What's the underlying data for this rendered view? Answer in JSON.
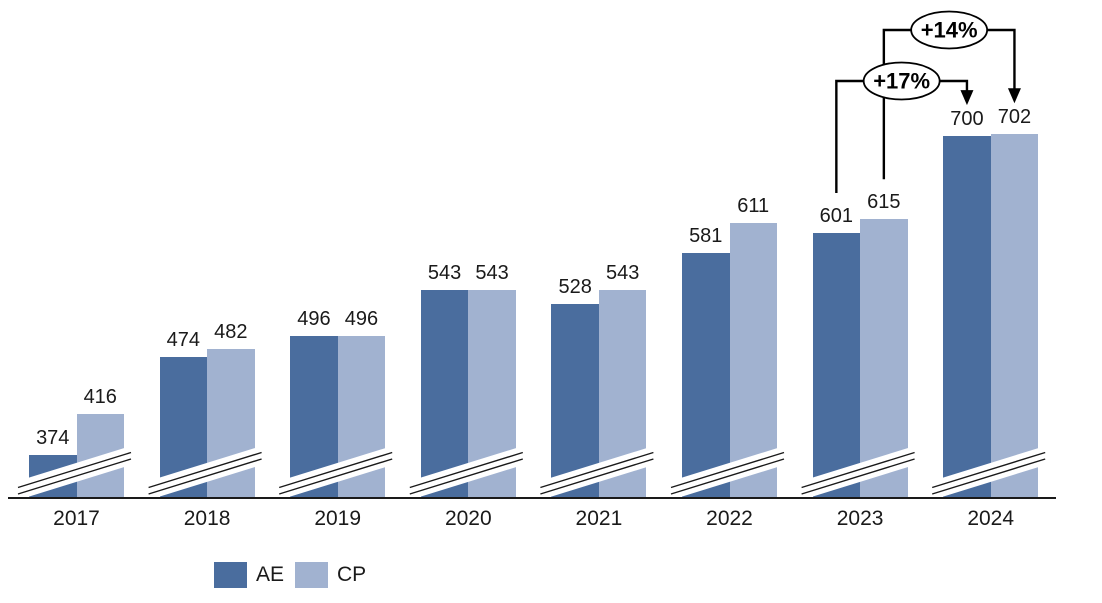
{
  "chart_data": {
    "type": "bar",
    "categories": [
      "2017",
      "2018",
      "2019",
      "2020",
      "2021",
      "2022",
      "2023",
      "2024"
    ],
    "series": [
      {
        "name": "AE",
        "color": "#4A6D9E",
        "values": [
          374,
          474,
          496,
          543,
          528,
          581,
          601,
          700
        ]
      },
      {
        "name": "CP",
        "color": "#A1B2D0",
        "values": [
          416,
          482,
          496,
          543,
          543,
          611,
          615,
          702
        ]
      }
    ],
    "annotations": [
      {
        "label": "+17%",
        "series": "AE",
        "from_category": "2023",
        "to_category": "2024"
      },
      {
        "label": "+14%",
        "series": "CP",
        "from_category": "2023",
        "to_category": "2024"
      }
    ],
    "title": "",
    "xlabel": "",
    "ylabel": "",
    "value_labels": true,
    "y_axis_visible": false,
    "axis_break": true,
    "grid": false,
    "legend_position": "bottom"
  },
  "legend": {
    "items": [
      {
        "label": "AE",
        "color": "#4A6D9E"
      },
      {
        "label": "CP",
        "color": "#A1B2D0"
      }
    ]
  },
  "colors": {
    "axis": "#1a1a1a",
    "annotation": "#000000",
    "label_text": "#1a1a1a"
  }
}
